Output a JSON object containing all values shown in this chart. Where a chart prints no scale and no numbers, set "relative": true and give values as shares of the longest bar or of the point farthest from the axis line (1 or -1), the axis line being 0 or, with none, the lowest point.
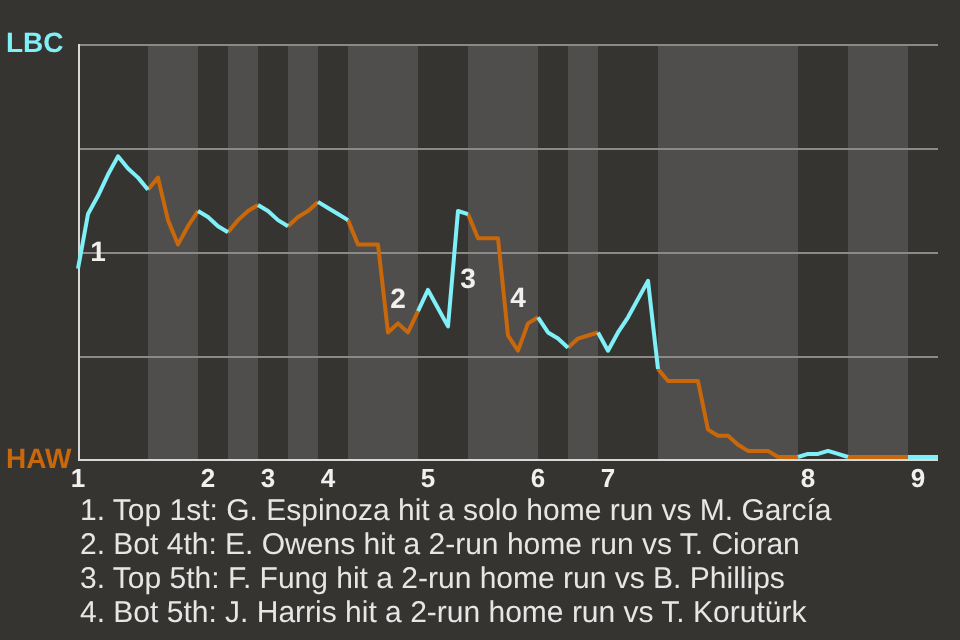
{
  "chart_data": {
    "type": "line",
    "relative": true,
    "ylim": [
      0,
      1.37
    ],
    "categories": [
      "1",
      null,
      null,
      null,
      null,
      null,
      null,
      null,
      null,
      null,
      null,
      null,
      null,
      "2",
      null,
      null,
      null,
      null,
      null,
      "3",
      null,
      null,
      null,
      null,
      null,
      "4",
      null,
      null,
      null,
      null,
      null,
      null,
      null,
      null,
      null,
      "5",
      null,
      null,
      null,
      null,
      null,
      null,
      null,
      null,
      null,
      null,
      "6",
      null,
      null,
      null,
      null,
      null,
      null,
      "7",
      null,
      null,
      null,
      null,
      null,
      null,
      null,
      null,
      null,
      null,
      null,
      null,
      null,
      null,
      null,
      null,
      null,
      null,
      null,
      "8",
      null,
      null,
      null,
      null,
      null,
      null,
      null,
      null,
      null,
      null,
      "9",
      null,
      null
    ],
    "series": [
      {
        "name": "LBC",
        "color": "#80f0f8",
        "values": [
          0.63,
          0.81,
          0.87,
          0.94,
          1,
          0.96,
          0.93,
          0.89,
          null,
          null,
          null,
          null,
          0.82,
          0.8,
          0.77,
          0.75,
          null,
          null,
          0.84,
          0.82,
          0.79,
          0.77,
          null,
          null,
          0.85,
          0.83,
          0.81,
          0.79,
          null,
          null,
          null,
          null,
          null,
          null,
          0.49,
          0.56,
          0.5,
          0.44,
          0.82,
          0.81,
          null,
          null,
          null,
          null,
          null,
          null,
          0.47,
          0.42,
          0.4,
          0.37,
          null,
          null,
          0.42,
          0.36,
          0.42,
          0.47,
          0.53,
          0.59,
          0.3,
          null,
          null,
          null,
          null,
          null,
          null,
          null,
          null,
          null,
          null,
          null,
          null,
          null,
          0.01,
          0.02,
          0.02,
          0.03,
          0.02,
          0.01,
          null,
          null,
          null,
          null,
          null,
          0.01,
          0.01,
          0.01,
          0.01
        ]
      },
      {
        "name": "HAW",
        "color": "#c8680a",
        "values": [
          null,
          null,
          null,
          null,
          null,
          null,
          null,
          0.89,
          0.93,
          0.79,
          0.71,
          0.77,
          0.82,
          null,
          null,
          0.75,
          0.79,
          0.82,
          0.84,
          null,
          null,
          0.77,
          0.8,
          0.82,
          0.85,
          null,
          null,
          0.79,
          0.71,
          0.71,
          0.71,
          0.42,
          0.45,
          0.42,
          0.49,
          null,
          null,
          null,
          null,
          0.81,
          0.73,
          0.73,
          0.73,
          0.41,
          0.36,
          0.45,
          0.47,
          null,
          null,
          0.37,
          0.4,
          0.41,
          0.42,
          null,
          null,
          null,
          null,
          null,
          0.3,
          0.26,
          0.26,
          0.26,
          0.26,
          0.1,
          0.08,
          0.08,
          0.05,
          0.03,
          0.03,
          0.03,
          0.01,
          0.01,
          0.01,
          null,
          null,
          null,
          null,
          0.01,
          0.01,
          0.01,
          0.01,
          0.01,
          0.01,
          0.01,
          null,
          null,
          null
        ]
      }
    ],
    "grid": "y",
    "legend": "left",
    "marker": "none",
    "annotations": [
      {
        "text": "1",
        "y": 0.81
      },
      {
        "text": "2",
        "y": 0.42
      },
      {
        "text": "3",
        "y": 0.82
      },
      {
        "text": "4",
        "y": 0.41
      },
      "1. Top 1st: G. Espinoza hit a solo home run vs M. García",
      "2. Bot 4th: E. Owens hit a 2-run home run vs T. Cioran",
      "3. Top 5th: F. Fung hit a 2-run home run vs B. Phillips",
      "4. Bot 5th: J. Harris hit a 2-run home run vs T. Korutürk"
    ]
  }
}
